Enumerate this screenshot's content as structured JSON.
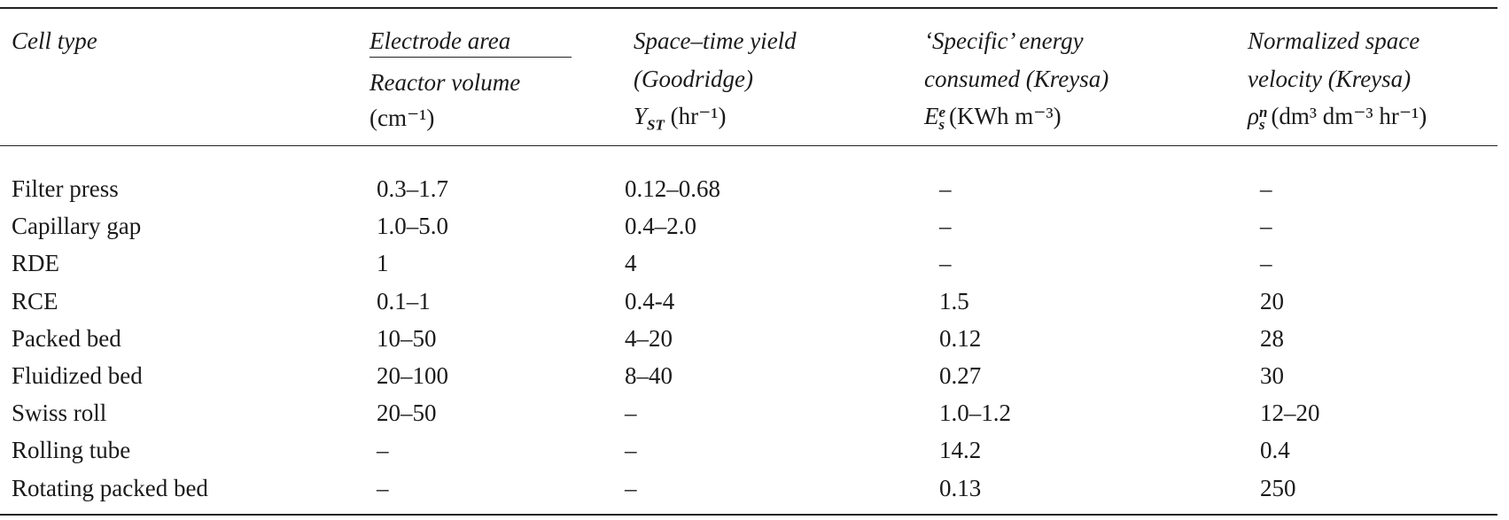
{
  "table": {
    "columns": [
      {
        "title": "Cell type"
      },
      {
        "numerator": "Electrode area",
        "denominator": "Reactor volume",
        "unit": "(cm⁻¹)"
      },
      {
        "lines": [
          "Space–time yield",
          "(Goodridge)"
        ],
        "symbol": {
          "base": "Y",
          "sub": "ST"
        },
        "unit": "(hr⁻¹)"
      },
      {
        "lines": [
          "‘Specific’ energy",
          "consumed (Kreysa)"
        ],
        "symbol": {
          "base": "E",
          "sub": "s",
          "sup": "e"
        },
        "unit": "(KWh m⁻³)"
      },
      {
        "lines": [
          "Normalized space",
          "velocity (Kreysa)"
        ],
        "symbol": {
          "base": "ρ",
          "sub": "s",
          "sup": "n"
        },
        "unit": "(dm³ dm⁻³ hr⁻¹)"
      }
    ],
    "rows": [
      [
        "Filter press",
        "0.3–1.7",
        "0.12–0.68",
        "–",
        "–"
      ],
      [
        "Capillary gap",
        "1.0–5.0",
        "0.4–2.0",
        "–",
        "–"
      ],
      [
        "RDE",
        "1",
        "4",
        "–",
        "–"
      ],
      [
        "RCE",
        "0.1–1",
        "0.4-4",
        "1.5",
        "20"
      ],
      [
        "Packed bed",
        "10–50",
        "4–20",
        "0.12",
        "28"
      ],
      [
        "Fluidized bed",
        "20–100",
        "8–40",
        "0.27",
        "30"
      ],
      [
        "Swiss roll",
        "20–50",
        "–",
        "1.0–1.2",
        "12–20"
      ],
      [
        "Rolling tube",
        "–",
        "–",
        "14.2",
        "0.4"
      ],
      [
        "Rotating packed bed",
        "–",
        "–",
        "0.13",
        "250"
      ]
    ]
  }
}
